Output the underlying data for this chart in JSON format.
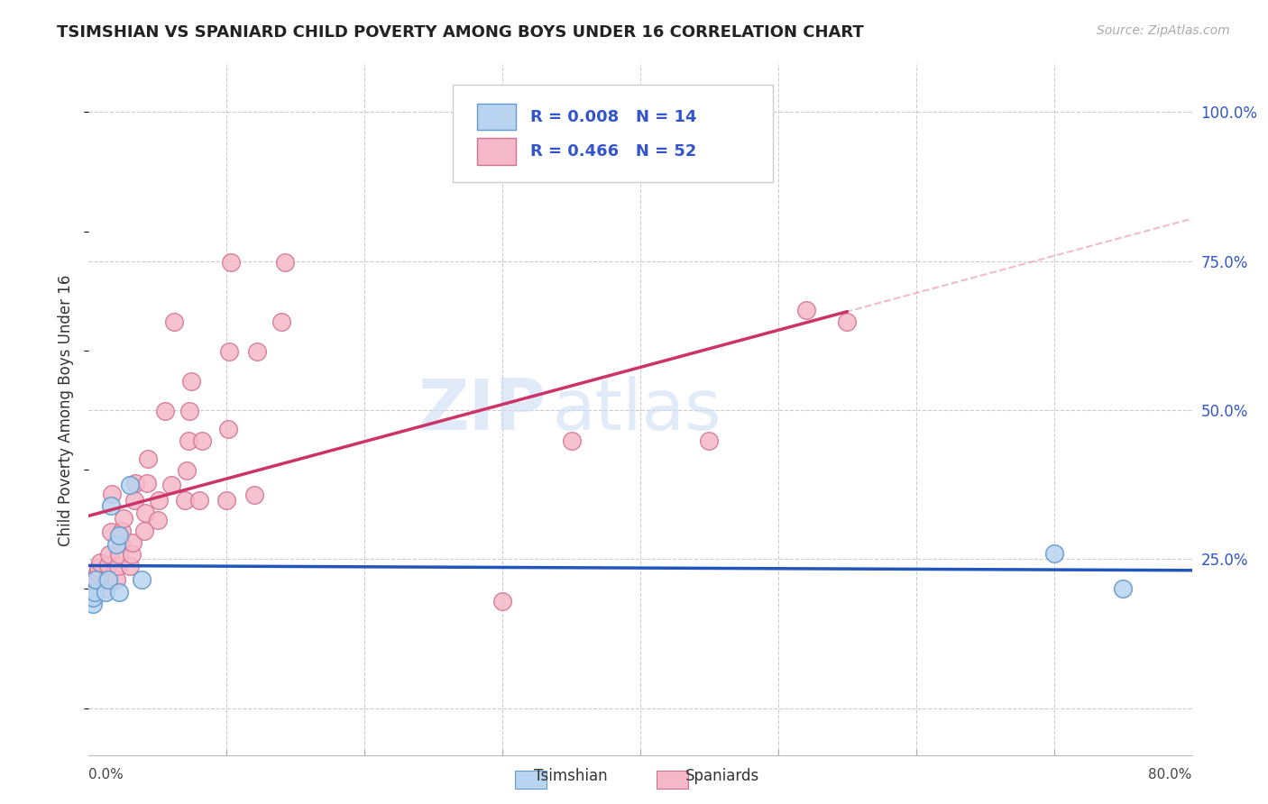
{
  "title": "TSIMSHIAN VS SPANIARD CHILD POVERTY AMONG BOYS UNDER 16 CORRELATION CHART",
  "source": "Source: ZipAtlas.com",
  "ylabel": "Child Poverty Among Boys Under 16",
  "watermark_line1": "ZIP",
  "watermark_line2": "atlas",
  "tsimshian_R": "0.008",
  "tsimshian_N": "14",
  "spaniard_R": "0.466",
  "spaniard_N": "52",
  "xlim": [
    0.0,
    0.8
  ],
  "ylim": [
    -0.08,
    1.08
  ],
  "yticks": [
    0.0,
    0.25,
    0.5,
    0.75,
    1.0
  ],
  "ytick_labels": [
    "",
    "25.0%",
    "50.0%",
    "75.0%",
    "100.0%"
  ],
  "grid_color": "#cccccc",
  "tsimshian_color": "#b8d4f0",
  "tsimshian_edge": "#6699cc",
  "spaniard_color": "#f5b8c8",
  "spaniard_edge": "#d07090",
  "tsimshian_line_color": "#2255bb",
  "spaniard_line_color": "#cc3366",
  "spaniard_dash_color": "#e8a0b8",
  "bg_color": "#ffffff",
  "legend_color": "#3355cc",
  "tsimshian_x": [
    0.003,
    0.003,
    0.004,
    0.005,
    0.012,
    0.014,
    0.016,
    0.02,
    0.022,
    0.022,
    0.03,
    0.038,
    0.7,
    0.75
  ],
  "tsimshian_y": [
    0.175,
    0.185,
    0.195,
    0.215,
    0.195,
    0.215,
    0.34,
    0.275,
    0.29,
    0.195,
    0.375,
    0.215,
    0.26,
    0.2
  ],
  "spaniard_x": [
    0.003,
    0.004,
    0.005,
    0.006,
    0.007,
    0.008,
    0.012,
    0.013,
    0.014,
    0.015,
    0.016,
    0.017,
    0.02,
    0.021,
    0.022,
    0.023,
    0.024,
    0.025,
    0.03,
    0.031,
    0.032,
    0.033,
    0.034,
    0.04,
    0.041,
    0.042,
    0.043,
    0.05,
    0.051,
    0.055,
    0.06,
    0.062,
    0.07,
    0.071,
    0.072,
    0.073,
    0.074,
    0.08,
    0.082,
    0.1,
    0.101,
    0.102,
    0.103,
    0.12,
    0.122,
    0.14,
    0.142,
    0.3,
    0.35,
    0.45,
    0.52,
    0.55
  ],
  "spaniard_y": [
    0.2,
    0.215,
    0.22,
    0.228,
    0.235,
    0.245,
    0.2,
    0.215,
    0.24,
    0.258,
    0.295,
    0.36,
    0.215,
    0.238,
    0.258,
    0.278,
    0.298,
    0.318,
    0.238,
    0.258,
    0.278,
    0.348,
    0.378,
    0.298,
    0.328,
    0.378,
    0.418,
    0.315,
    0.348,
    0.498,
    0.375,
    0.648,
    0.348,
    0.398,
    0.448,
    0.498,
    0.548,
    0.348,
    0.448,
    0.348,
    0.468,
    0.598,
    0.748,
    0.358,
    0.598,
    0.648,
    0.748,
    0.18,
    0.448,
    0.448,
    0.668,
    0.648
  ],
  "solid_line_end": 0.55,
  "dashed_line_start": 0.5,
  "dashed_line_end": 0.8
}
